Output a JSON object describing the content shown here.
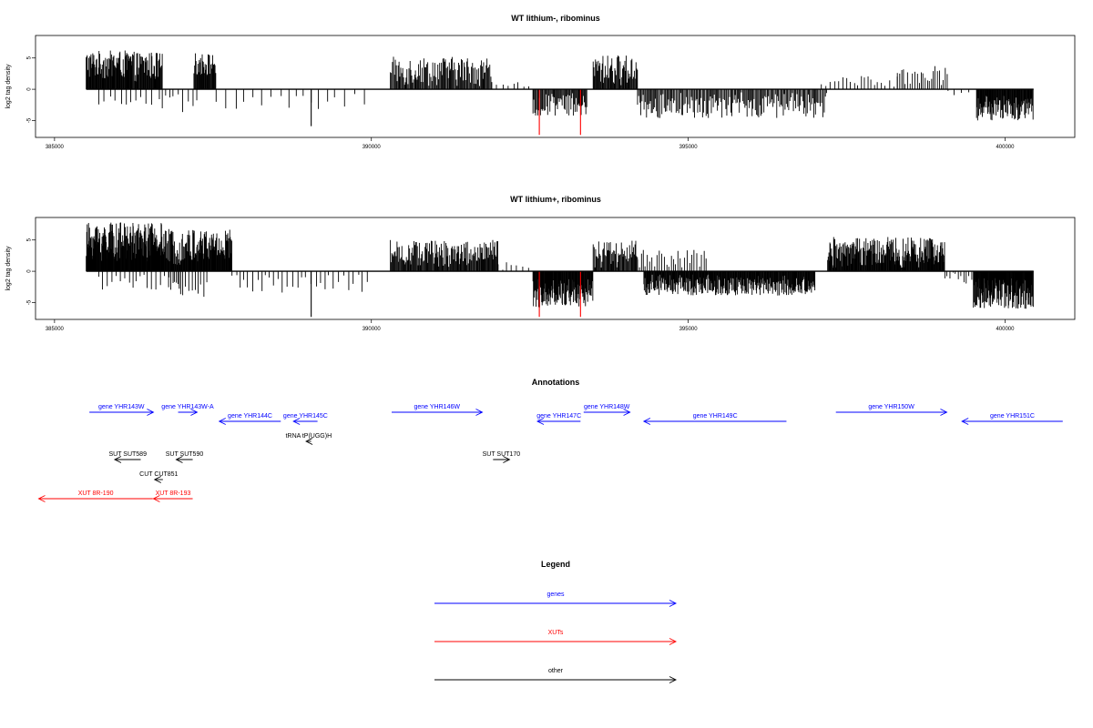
{
  "chart_data": [
    {
      "type": "bar",
      "title": "WT lithium-, ribominus",
      "ylabel": "log2 tag density",
      "xlabel": "",
      "xlim": [
        384700,
        401100
      ],
      "ylim": [
        -7.7,
        8.6
      ],
      "xticks": [
        385000,
        390000,
        395000,
        400000
      ],
      "xtick_labels": [
        "385000",
        "390000",
        "395000",
        "400000"
      ],
      "yticks": [
        -5,
        0,
        5
      ],
      "ytick_labels": [
        "-5",
        "0",
        "5"
      ],
      "grid": false,
      "bar_color": "#000000",
      "highlight_color": "#ff0000",
      "baseline_range": [
        385500,
        400450
      ],
      "segments": [
        {
          "start": 385500,
          "end": 386220,
          "sign": 1,
          "min": 1.5,
          "max": 6.2,
          "step": 9
        },
        {
          "start": 386220,
          "end": 386700,
          "sign": 1,
          "min": 1.2,
          "max": 6.0,
          "step": 10
        },
        {
          "start": 385700,
          "end": 386700,
          "sign": -1,
          "min": 0.4,
          "max": 2.5,
          "step": 95
        },
        {
          "start": 386700,
          "end": 387250,
          "sign": -1,
          "min": 0.8,
          "max": 3.8,
          "step": 70
        },
        {
          "start": 387200,
          "end": 387550,
          "sign": 1,
          "min": 2.0,
          "max": 5.8,
          "step": 10
        },
        {
          "start": 387550,
          "end": 390000,
          "sign": -1,
          "min": 0.4,
          "max": 3.2,
          "step": 130
        },
        {
          "start": 390300,
          "end": 391900,
          "sign": 1,
          "min": 0.5,
          "max": 5.2,
          "step": 14
        },
        {
          "start": 391900,
          "end": 392500,
          "sign": 1,
          "min": 0.3,
          "max": 1.5,
          "step": 85
        },
        {
          "start": 392550,
          "end": 393400,
          "sign": -1,
          "min": 0.6,
          "max": 4.2,
          "step": 14
        },
        {
          "start": 393500,
          "end": 394200,
          "sign": 1,
          "min": 0.5,
          "max": 5.5,
          "step": 12
        },
        {
          "start": 394200,
          "end": 397200,
          "sign": -1,
          "min": 0.5,
          "max": 4.6,
          "step": 18
        },
        {
          "start": 397100,
          "end": 398300,
          "sign": 1,
          "min": 0.3,
          "max": 2.2,
          "step": 60
        },
        {
          "start": 398300,
          "end": 399100,
          "sign": 1,
          "min": 0.6,
          "max": 3.8,
          "step": 35
        },
        {
          "start": 399100,
          "end": 399500,
          "sign": -1,
          "min": 0.2,
          "max": 1.0,
          "step": 110
        },
        {
          "start": 399550,
          "end": 400450,
          "sign": -1,
          "min": 1.0,
          "max": 5.0,
          "step": 9
        }
      ],
      "special": [
        {
          "x": 389050,
          "y": -5.9,
          "color": "#000000"
        },
        {
          "x": 392650,
          "y": -7.3,
          "color": "#ff0000"
        },
        {
          "x": 393300,
          "y": -7.3,
          "color": "#ff0000"
        }
      ]
    },
    {
      "type": "bar",
      "title": "WT lithium+, ribominus",
      "ylabel": "log2 tag density",
      "xlabel": "",
      "xlim": [
        384700,
        401100
      ],
      "ylim": [
        -7.7,
        8.6
      ],
      "xticks": [
        385000,
        390000,
        395000,
        400000
      ],
      "xtick_labels": [
        "385000",
        "390000",
        "395000",
        "400000"
      ],
      "yticks": [
        -5,
        0,
        5
      ],
      "ytick_labels": [
        "-5",
        "0",
        "5"
      ],
      "grid": false,
      "bar_color": "#000000",
      "highlight_color": "#ff0000",
      "baseline_range": [
        385500,
        400450
      ],
      "segments": [
        {
          "start": 385500,
          "end": 386700,
          "sign": 1,
          "min": 1.5,
          "max": 7.8,
          "step": 7
        },
        {
          "start": 386700,
          "end": 387800,
          "sign": 1,
          "min": 1.0,
          "max": 6.8,
          "step": 8
        },
        {
          "start": 385700,
          "end": 387000,
          "sign": -1,
          "min": 0.5,
          "max": 3.0,
          "step": 60
        },
        {
          "start": 386800,
          "end": 387450,
          "sign": -1,
          "min": 1.5,
          "max": 4.5,
          "step": 45
        },
        {
          "start": 387800,
          "end": 390000,
          "sign": -1,
          "min": 0.4,
          "max": 3.5,
          "step": 70
        },
        {
          "start": 390300,
          "end": 392000,
          "sign": 1,
          "min": 0.5,
          "max": 5.0,
          "step": 12
        },
        {
          "start": 392000,
          "end": 392500,
          "sign": 1,
          "min": 0.2,
          "max": 1.5,
          "step": 80
        },
        {
          "start": 392550,
          "end": 393500,
          "sign": -1,
          "min": 1.0,
          "max": 5.8,
          "step": 8
        },
        {
          "start": 393500,
          "end": 394200,
          "sign": 1,
          "min": 0.5,
          "max": 5.0,
          "step": 12
        },
        {
          "start": 394200,
          "end": 395300,
          "sign": 1,
          "min": 0.3,
          "max": 3.5,
          "step": 35
        },
        {
          "start": 394300,
          "end": 397000,
          "sign": -1,
          "min": 0.5,
          "max": 3.9,
          "step": 9
        },
        {
          "start": 397200,
          "end": 399050,
          "sign": 1,
          "min": 0.5,
          "max": 5.5,
          "step": 9
        },
        {
          "start": 399050,
          "end": 399500,
          "sign": -1,
          "min": 0.2,
          "max": 2.0,
          "step": 40
        },
        {
          "start": 399500,
          "end": 400450,
          "sign": -1,
          "min": 1.0,
          "max": 6.0,
          "step": 7
        }
      ],
      "special": [
        {
          "x": 389050,
          "y": -7.3,
          "color": "#000000"
        },
        {
          "x": 392650,
          "y": -7.3,
          "color": "#ff0000"
        },
        {
          "x": 393300,
          "y": -7.3,
          "color": "#ff0000"
        }
      ]
    },
    {
      "type": "annotation-track",
      "title": "Annotations",
      "xlim": [
        384700,
        401100
      ],
      "features": [
        {
          "label": "gene YHR143W",
          "start": 385550,
          "end": 386560,
          "dir": 1,
          "row": 0,
          "kind": "gene"
        },
        {
          "label": "gene YHR143W-A",
          "start": 386950,
          "end": 387250,
          "dir": 1,
          "row": 0,
          "kind": "gene"
        },
        {
          "label": "gene YHR144C",
          "start": 387600,
          "end": 388570,
          "dir": -1,
          "row": 1,
          "kind": "gene"
        },
        {
          "label": "gene YHR145C",
          "start": 388770,
          "end": 389150,
          "dir": -1,
          "row": 1,
          "kind": "gene"
        },
        {
          "label": "gene YHR146W",
          "start": 390320,
          "end": 391750,
          "dir": 1,
          "row": 0,
          "kind": "gene"
        },
        {
          "label": "gene YHR147C",
          "start": 392620,
          "end": 393300,
          "dir": -1,
          "row": 1,
          "kind": "gene"
        },
        {
          "label": "gene YHR148W",
          "start": 393350,
          "end": 394080,
          "dir": 1,
          "row": 0,
          "kind": "gene"
        },
        {
          "label": "gene YHR149C",
          "start": 394300,
          "end": 396550,
          "dir": -1,
          "row": 1,
          "kind": "gene"
        },
        {
          "label": "gene YHR150W",
          "start": 397330,
          "end": 399080,
          "dir": 1,
          "row": 0,
          "kind": "gene"
        },
        {
          "label": "gene YHR151C",
          "start": 399320,
          "end": 400910,
          "dir": -1,
          "row": 1,
          "kind": "gene"
        },
        {
          "label": "tRNA tP(UGG)H",
          "start": 388970,
          "end": 389050,
          "dir": -1,
          "row": 2,
          "kind": "other"
        },
        {
          "label": "SUT SUT589",
          "start": 385950,
          "end": 386360,
          "dir": -1,
          "row": 3,
          "kind": "other"
        },
        {
          "label": "SUT SUT590",
          "start": 386920,
          "end": 387180,
          "dir": -1,
          "row": 3,
          "kind": "other"
        },
        {
          "label": "SUT SUT170",
          "start": 391920,
          "end": 392180,
          "dir": 1,
          "row": 3,
          "kind": "other"
        },
        {
          "label": "CUT CUT851",
          "start": 386580,
          "end": 386710,
          "dir": -1,
          "row": 4,
          "kind": "other"
        },
        {
          "label": "XUT 8R-190",
          "start": 384750,
          "end": 386550,
          "dir": -1,
          "row": 5,
          "kind": "xut"
        },
        {
          "label": "XUT 8R-193",
          "start": 386560,
          "end": 387180,
          "dir": -1,
          "row": 5,
          "kind": "xut"
        }
      ],
      "colors": {
        "gene": "#0000ff",
        "xut": "#ff0000",
        "other": "#000000"
      }
    },
    {
      "type": "legend",
      "title": "Legend",
      "entries": [
        {
          "label": "genes",
          "color": "#0000ff"
        },
        {
          "label": "XUTs",
          "color": "#ff0000"
        },
        {
          "label": "other",
          "color": "#000000"
        }
      ]
    }
  ]
}
